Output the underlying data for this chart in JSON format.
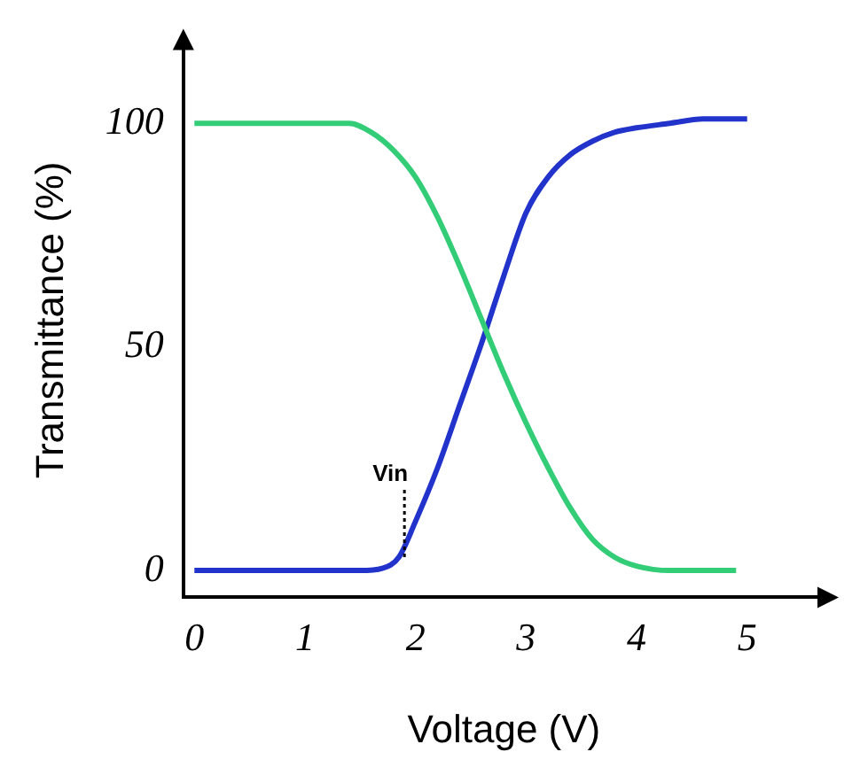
{
  "chart_data": {
    "type": "line",
    "xlabel": "Voltage (V)",
    "ylabel": "Transmittance (%)",
    "xlim": [
      -0.1,
      5.7
    ],
    "ylim": [
      -6,
      118
    ],
    "xticks": [
      0,
      1,
      2,
      3,
      4,
      5
    ],
    "yticks": [
      0,
      50,
      100
    ],
    "grid": false,
    "legend": false,
    "marker": "none",
    "line_style": "solid",
    "series": [
      {
        "color": "#33cc77",
        "x": [
          0,
          0.5,
          1,
          1.4,
          1.6,
          1.8,
          2,
          2.2,
          2.4,
          2.6,
          2.8,
          3,
          3.2,
          3.4,
          3.6,
          3.8,
          4,
          4.3,
          4.6,
          4.9
        ],
        "values": [
          100,
          100,
          100,
          100,
          98,
          94,
          88,
          79,
          68,
          56,
          44,
          33,
          23,
          14,
          7,
          3,
          1,
          0,
          0,
          0
        ]
      },
      {
        "color": "#2233cc",
        "x": [
          0,
          0.5,
          1,
          1.5,
          1.7,
          1.85,
          2,
          2.2,
          2.4,
          2.6,
          2.8,
          3,
          3.2,
          3.4,
          3.6,
          3.8,
          4,
          4.3,
          4.6,
          5
        ],
        "values": [
          0,
          0,
          0,
          0,
          0.5,
          3,
          11,
          23,
          37,
          51,
          66,
          80,
          88,
          93,
          96,
          98,
          99,
          100,
          101,
          101
        ]
      }
    ],
    "annotations": [
      {
        "text": "Vin",
        "x": 1.9,
        "y": 3
      }
    ]
  }
}
